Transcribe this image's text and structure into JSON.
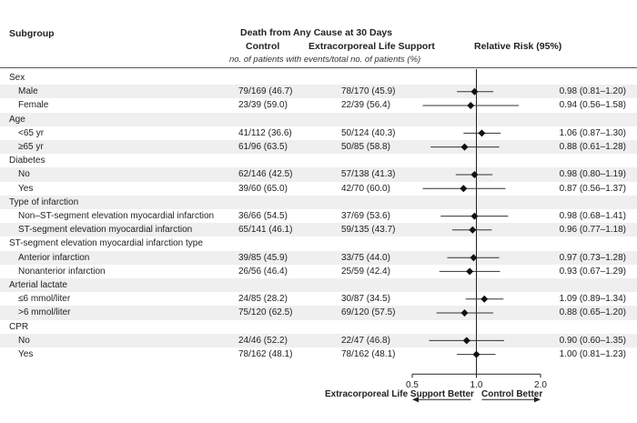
{
  "headers": {
    "subgroup": "Subgroup",
    "death_title": "Death from Any Cause at 30 Days",
    "control": "Control",
    "ecls": "Extracorporeal Life Support",
    "rr": "Relative Risk (95%)",
    "note": "no. of patients with events/total no. of patients (%)"
  },
  "chart_data": {
    "type": "forest",
    "x_scale": "log",
    "xlim": [
      0.5,
      2.0
    ],
    "ticks": [
      "0.5",
      "1.0",
      "2.0"
    ],
    "reference_line": 1.0,
    "footer_left": "Extracorporeal Life Support Better",
    "footer_right": "Control Better",
    "rows": [
      {
        "label": "Sex",
        "header": true
      },
      {
        "label": "Male",
        "control": "79/169 (46.7)",
        "ecls": "78/170 (45.9)",
        "rr_text": "0.98 (0.81–1.20)",
        "rr": 0.98,
        "lo": 0.81,
        "hi": 1.2
      },
      {
        "label": "Female",
        "control": "23/39 (59.0)",
        "ecls": "22/39 (56.4)",
        "rr_text": "0.94 (0.56–1.58)",
        "rr": 0.94,
        "lo": 0.56,
        "hi": 1.58
      },
      {
        "label": "Age",
        "header": true
      },
      {
        "label": "<65 yr",
        "control": "41/112 (36.6)",
        "ecls": "50/124 (40.3)",
        "rr_text": "1.06 (0.87–1.30)",
        "rr": 1.06,
        "lo": 0.87,
        "hi": 1.3
      },
      {
        "label": "≥65 yr",
        "control": "61/96 (63.5)",
        "ecls": "50/85 (58.8)",
        "rr_text": "0.88 (0.61–1.28)",
        "rr": 0.88,
        "lo": 0.61,
        "hi": 1.28
      },
      {
        "label": "Diabetes",
        "header": true
      },
      {
        "label": "No",
        "control": "62/146 (42.5)",
        "ecls": "57/138 (41.3)",
        "rr_text": "0.98 (0.80–1.19)",
        "rr": 0.98,
        "lo": 0.8,
        "hi": 1.19
      },
      {
        "label": "Yes",
        "control": "39/60 (65.0)",
        "ecls": "42/70 (60.0)",
        "rr_text": "0.87 (0.56–1.37)",
        "rr": 0.87,
        "lo": 0.56,
        "hi": 1.37
      },
      {
        "label": "Type of infarction",
        "header": true
      },
      {
        "label": "Non–ST-segment elevation myocardial infarction",
        "control": "36/66 (54.5)",
        "ecls": "37/69 (53.6)",
        "rr_text": "0.98 (0.68–1.41)",
        "rr": 0.98,
        "lo": 0.68,
        "hi": 1.41
      },
      {
        "label": "ST-segment elevation myocardial infarction",
        "control": "65/141 (46.1)",
        "ecls": "59/135 (43.7)",
        "rr_text": "0.96 (0.77–1.18)",
        "rr": 0.96,
        "lo": 0.77,
        "hi": 1.18
      },
      {
        "label": "ST-segment elevation myocardial infarction type",
        "header": true
      },
      {
        "label": "Anterior infarction",
        "control": "39/85 (45.9)",
        "ecls": "33/75 (44.0)",
        "rr_text": "0.97 (0.73–1.28)",
        "rr": 0.97,
        "lo": 0.73,
        "hi": 1.28
      },
      {
        "label": "Nonanterior infarction",
        "control": "26/56 (46.4)",
        "ecls": "25/59 (42.4)",
        "rr_text": "0.93 (0.67–1.29)",
        "rr": 0.93,
        "lo": 0.67,
        "hi": 1.29
      },
      {
        "label": "Arterial lactate",
        "header": true
      },
      {
        "label": "≤6 mmol/liter",
        "control": "24/85 (28.2)",
        "ecls": "30/87 (34.5)",
        "rr_text": "1.09 (0.89–1.34)",
        "rr": 1.09,
        "lo": 0.89,
        "hi": 1.34
      },
      {
        "label": ">6 mmol/liter",
        "control": "75/120 (62.5)",
        "ecls": "69/120 (57.5)",
        "rr_text": "0.88 (0.65–1.20)",
        "rr": 0.88,
        "lo": 0.65,
        "hi": 1.2
      },
      {
        "label": "CPR",
        "header": true
      },
      {
        "label": "No",
        "control": "24/46 (52.2)",
        "ecls": "22/47 (46.8)",
        "rr_text": "0.90 (0.60–1.35)",
        "rr": 0.9,
        "lo": 0.6,
        "hi": 1.35
      },
      {
        "label": "Yes",
        "control": "78/162 (48.1)",
        "ecls": "78/162 (48.1)",
        "rr_text": "1.00 (0.81–1.23)",
        "rr": 1.0,
        "lo": 0.81,
        "hi": 1.23
      }
    ]
  }
}
